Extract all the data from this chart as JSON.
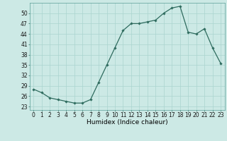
{
  "x": [
    0,
    1,
    2,
    3,
    4,
    5,
    6,
    7,
    8,
    9,
    10,
    11,
    12,
    13,
    14,
    15,
    16,
    17,
    18,
    19,
    20,
    21,
    22,
    23
  ],
  "y": [
    28,
    27,
    25.5,
    25,
    24.5,
    24,
    24,
    25,
    30,
    35,
    40,
    45,
    47,
    47,
    47.5,
    48,
    50,
    51.5,
    52,
    44.5,
    44,
    45.5,
    40,
    35.5
  ],
  "line_color": "#2e6b5e",
  "marker": "D",
  "marker_size": 1.8,
  "bg_color": "#cce9e5",
  "grid_color": "#aad4cf",
  "xlabel": "Humidex (Indice chaleur)",
  "yticks": [
    23,
    26,
    29,
    32,
    35,
    38,
    41,
    44,
    47,
    50
  ],
  "xticks": [
    0,
    1,
    2,
    3,
    4,
    5,
    6,
    7,
    8,
    9,
    10,
    11,
    12,
    13,
    14,
    15,
    16,
    17,
    18,
    19,
    20,
    21,
    22,
    23
  ],
  "ylim": [
    22.0,
    53.0
  ],
  "xlim": [
    -0.5,
    23.5
  ],
  "tick_fontsize": 5.5,
  "xlabel_fontsize": 6.5,
  "line_width": 0.9
}
